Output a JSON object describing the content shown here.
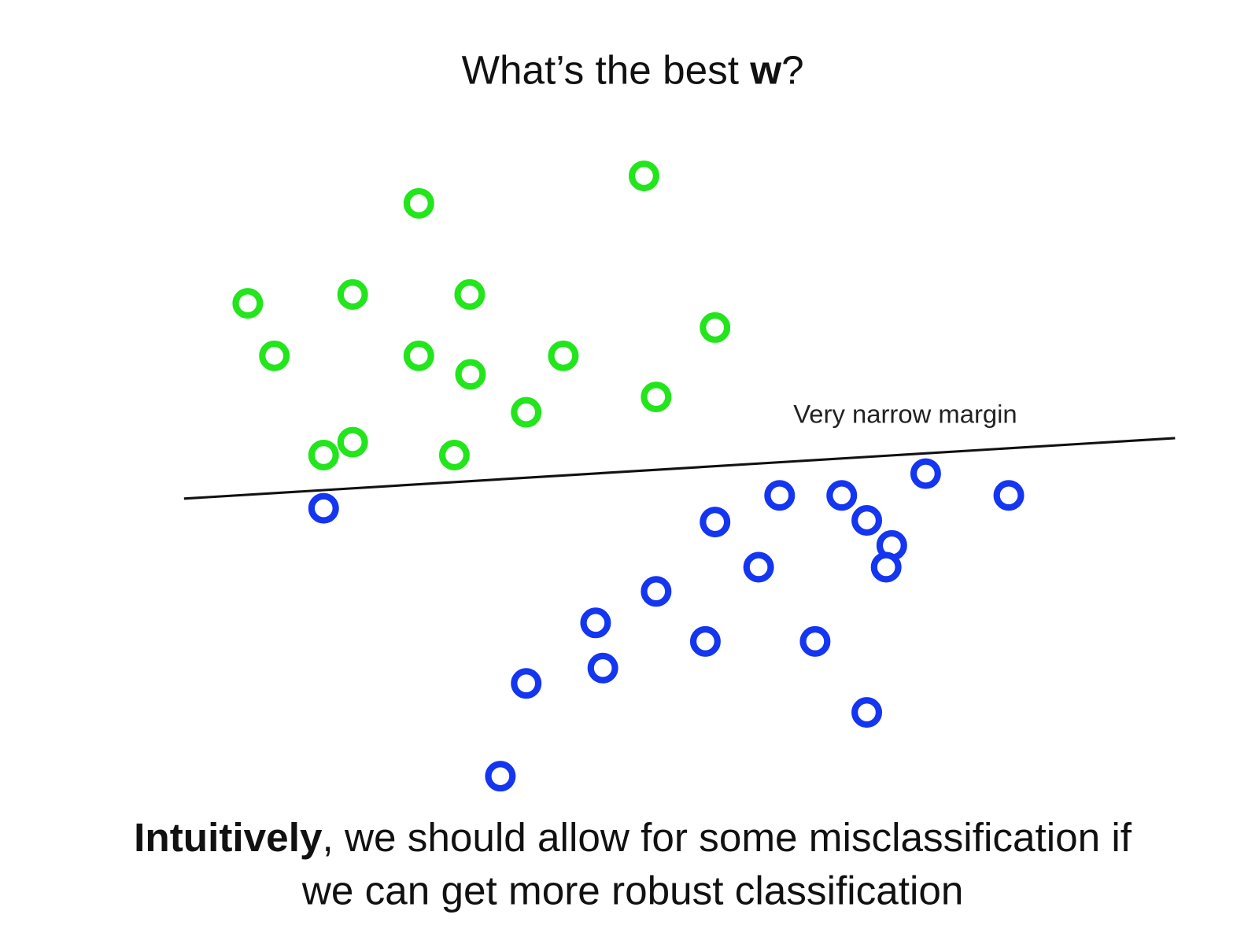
{
  "title": {
    "prefix": "What’s the best ",
    "bold": "w",
    "suffix": "?"
  },
  "annotation": "Very narrow margin",
  "caption": {
    "bold": "Intuitively",
    "line1_rest": ", we should allow for some misclassification if",
    "line2": "we can get more robust classification"
  }
}
